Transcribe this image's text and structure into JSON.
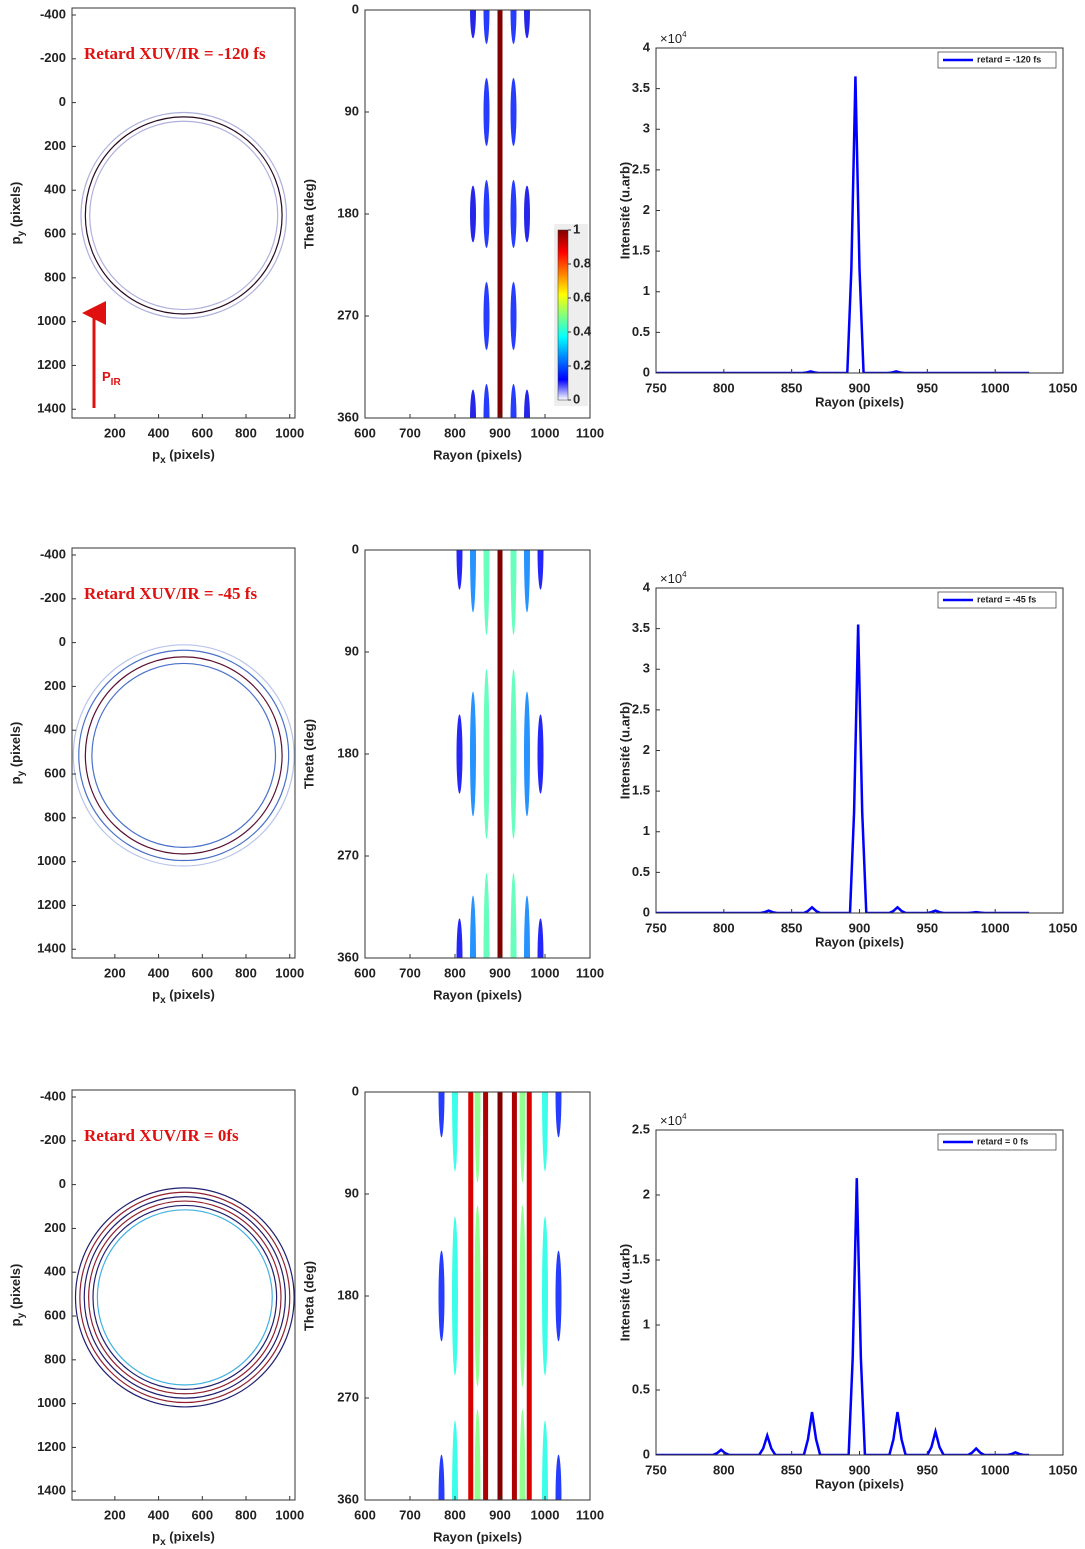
{
  "chart_data": [
    {
      "type": "rings",
      "annotation": "Retard XUV/IR = -120 fs",
      "arrow_label": {
        "main": "P",
        "sub": "IR"
      },
      "xlabel": {
        "main": "p",
        "sub": "x",
        "tail": " (pixels)"
      },
      "ylabel": {
        "main": "p",
        "sub": "y",
        "tail": " (pixels)"
      },
      "xlim": [
        4,
        1024
      ],
      "ylim": [
        -432,
        1440
      ],
      "y_reversed": true,
      "xticks": [
        200,
        400,
        600,
        800,
        1000
      ],
      "yticks": [
        -400,
        -200,
        0,
        200,
        400,
        600,
        800,
        1000,
        1200,
        1400
      ],
      "center": [
        515,
        515
      ],
      "rings": [
        {
          "r": 430,
          "color": "#b0b0dd"
        },
        {
          "r": 470,
          "color": "#b0b0dd"
        },
        {
          "r": 450,
          "color": "#2a0a20"
        }
      ]
    },
    {
      "type": "heatmap",
      "xlabel": "Rayon (pixels)",
      "ylabel": "Theta (deg)",
      "xlim": [
        600,
        1100
      ],
      "ylim": [
        0,
        360
      ],
      "y_reversed": true,
      "xticks": [
        600,
        700,
        800,
        900,
        1000,
        1100
      ],
      "yticks": [
        0,
        90,
        180,
        270,
        360
      ],
      "clim": [
        0,
        1
      ],
      "colorbar": {
        "ticks": [
          0,
          0.2,
          0.4,
          0.6,
          0.8,
          1
        ]
      },
      "stripes": [
        {
          "r": 900,
          "level": 1
        }
      ],
      "lobes": [
        {
          "r": 870,
          "level": 0.15,
          "theta": [
            0,
            90,
            180,
            270,
            360
          ],
          "span": 30
        },
        {
          "r": 930,
          "level": 0.15,
          "theta": [
            0,
            90,
            180,
            270,
            360
          ],
          "span": 30
        },
        {
          "r": 840,
          "level": 0.1,
          "theta": [
            0,
            180,
            360
          ],
          "span": 25
        },
        {
          "r": 960,
          "level": 0.1,
          "theta": [
            0,
            180,
            360
          ],
          "span": 25
        }
      ]
    },
    {
      "type": "line",
      "xlabel": "Rayon (pixels)",
      "ylabel": "Intensité (u.arb)",
      "scale_label": {
        "base": "×10",
        "exp": "4"
      },
      "xlim": [
        750,
        1050
      ],
      "ylim": [
        0,
        4
      ],
      "xticks": [
        750,
        800,
        850,
        900,
        950,
        1000,
        1050
      ],
      "yticks": [
        0,
        0.5,
        1,
        1.5,
        2,
        2.5,
        3,
        3.5,
        4
      ],
      "legend": "upper right",
      "x": [
        750,
        858,
        861,
        864,
        867,
        870,
        891,
        894,
        897,
        900,
        903,
        921,
        924,
        927,
        930,
        933,
        1025
      ],
      "series": [
        {
          "name": "retard = -120 fs",
          "color": "#0000ff",
          "values": [
            0,
            0,
            0.007,
            0.02,
            0.007,
            0,
            0,
            1.28,
            3.65,
            1.28,
            0,
            0,
            0.007,
            0.02,
            0.007,
            0,
            0
          ]
        }
      ]
    },
    {
      "type": "rings",
      "annotation": "Retard XUV/IR = -45 fs",
      "xlabel": {
        "main": "p",
        "sub": "x",
        "tail": " (pixels)"
      },
      "ylabel": {
        "main": "p",
        "sub": "y",
        "tail": " (pixels)"
      },
      "xlim": [
        4,
        1024
      ],
      "ylim": [
        -432,
        1440
      ],
      "y_reversed": true,
      "xticks": [
        200,
        400,
        600,
        800,
        1000
      ],
      "yticks": [
        -400,
        -200,
        0,
        200,
        400,
        600,
        800,
        1000,
        1200,
        1400
      ],
      "center": [
        515,
        515
      ],
      "rings": [
        {
          "r": 505,
          "color": "#b8c4ea"
        },
        {
          "r": 420,
          "color": "#4a70c8"
        },
        {
          "r": 480,
          "color": "#4a70c8"
        },
        {
          "r": 450,
          "color": "#5a1030"
        }
      ]
    },
    {
      "type": "heatmap",
      "xlabel": "Rayon (pixels)",
      "ylabel": "Theta (deg)",
      "xlim": [
        600,
        1100
      ],
      "ylim": [
        0,
        360
      ],
      "y_reversed": true,
      "xticks": [
        600,
        700,
        800,
        900,
        1000,
        1100
      ],
      "yticks": [
        0,
        90,
        180,
        270,
        360
      ],
      "clim": [
        0,
        1
      ],
      "stripes": [
        {
          "r": 900,
          "level": 1
        }
      ],
      "lobes": [
        {
          "r": 870,
          "level": 0.45,
          "theta": [
            0,
            180,
            360
          ],
          "span": 75
        },
        {
          "r": 930,
          "level": 0.45,
          "theta": [
            0,
            180,
            360
          ],
          "span": 75
        },
        {
          "r": 840,
          "level": 0.25,
          "theta": [
            0,
            180,
            360
          ],
          "span": 55
        },
        {
          "r": 960,
          "level": 0.25,
          "theta": [
            0,
            180,
            360
          ],
          "span": 55
        },
        {
          "r": 810,
          "level": 0.12,
          "theta": [
            0,
            180,
            360
          ],
          "span": 35
        },
        {
          "r": 990,
          "level": 0.12,
          "theta": [
            0,
            180,
            360
          ],
          "span": 35
        }
      ]
    },
    {
      "type": "line",
      "xlabel": "Rayon (pixels)",
      "ylabel": "Intensité (u.arb)",
      "scale_label": {
        "base": "×10",
        "exp": "4"
      },
      "xlim": [
        750,
        1050
      ],
      "ylim": [
        0,
        4
      ],
      "xticks": [
        750,
        800,
        850,
        900,
        950,
        1000,
        1050
      ],
      "yticks": [
        0,
        0.5,
        1,
        1.5,
        2,
        2.5,
        3,
        3.5,
        4
      ],
      "legend": "upper right",
      "x": [
        750,
        827,
        830,
        833,
        836,
        839,
        859,
        862,
        865,
        868,
        871,
        893,
        896,
        899,
        902,
        905,
        922,
        925,
        928,
        931,
        934,
        950,
        953,
        956,
        959,
        962,
        980,
        983,
        986,
        989,
        992,
        1025
      ],
      "series": [
        {
          "name": "retard = -45 fs",
          "color": "#0000ff",
          "values": [
            0,
            0,
            0.01,
            0.03,
            0.01,
            0,
            0,
            0.025,
            0.07,
            0.025,
            0,
            0,
            1.24,
            3.55,
            1.24,
            0,
            0,
            0.025,
            0.07,
            0.025,
            0,
            0,
            0.01,
            0.03,
            0.01,
            0,
            0,
            0.004,
            0.01,
            0.004,
            0,
            0
          ]
        }
      ]
    },
    {
      "type": "rings",
      "annotation": "Retard XUV/IR = 0fs",
      "xlabel": {
        "main": "p",
        "sub": "x",
        "tail": " (pixels)"
      },
      "ylabel": {
        "main": "p",
        "sub": "y",
        "tail": " (pixels)"
      },
      "xlim": [
        4,
        1024
      ],
      "ylim": [
        -432,
        1440
      ],
      "y_reversed": true,
      "xticks": [
        200,
        400,
        600,
        800,
        1000
      ],
      "yticks": [
        -400,
        -200,
        0,
        200,
        400,
        600,
        800,
        1000,
        1200,
        1400
      ],
      "center": [
        520,
        515
      ],
      "rings": [
        {
          "r": 400,
          "color": "#40b0e0"
        },
        {
          "r": 420,
          "color": "#202070"
        },
        {
          "r": 440,
          "color": "#902030"
        },
        {
          "r": 460,
          "color": "#202070"
        },
        {
          "r": 480,
          "color": "#902030"
        },
        {
          "r": 500,
          "color": "#202070"
        }
      ]
    },
    {
      "type": "heatmap",
      "xlabel": "Rayon (pixels)",
      "ylabel": "Theta (deg)",
      "xlim": [
        600,
        1100
      ],
      "ylim": [
        0,
        360
      ],
      "y_reversed": true,
      "xticks": [
        600,
        700,
        800,
        900,
        1000,
        1100
      ],
      "yticks": [
        0,
        90,
        180,
        270,
        360
      ],
      "clim": [
        0,
        1
      ],
      "stripes": [
        {
          "r": 835,
          "level": 0.9
        },
        {
          "r": 868,
          "level": 0.95
        },
        {
          "r": 900,
          "level": 1
        },
        {
          "r": 932,
          "level": 0.95
        },
        {
          "r": 965,
          "level": 0.9
        }
      ],
      "lobes": [
        {
          "r": 850,
          "level": 0.5,
          "theta": [
            0,
            180,
            360
          ],
          "span": 80
        },
        {
          "r": 950,
          "level": 0.5,
          "theta": [
            0,
            180,
            360
          ],
          "span": 80
        },
        {
          "r": 800,
          "level": 0.4,
          "theta": [
            0,
            180,
            360
          ],
          "span": 70
        },
        {
          "r": 1000,
          "level": 0.4,
          "theta": [
            0,
            180,
            360
          ],
          "span": 70
        },
        {
          "r": 770,
          "level": 0.15,
          "theta": [
            0,
            180,
            360
          ],
          "span": 40
        },
        {
          "r": 1030,
          "level": 0.15,
          "theta": [
            0,
            180,
            360
          ],
          "span": 40
        }
      ]
    },
    {
      "type": "line",
      "xlabel": "Rayon (pixels)",
      "ylabel": "Intensité (u.arb)",
      "scale_label": {
        "base": "×10",
        "exp": "4"
      },
      "xlim": [
        750,
        1050
      ],
      "ylim": [
        0,
        2.5
      ],
      "xticks": [
        750,
        800,
        850,
        900,
        950,
        1000,
        1050
      ],
      "yticks": [
        0,
        0.5,
        1,
        1.5,
        2,
        2.5
      ],
      "legend": "upper right",
      "x": [
        750,
        792,
        795,
        798,
        801,
        804,
        826,
        829,
        832,
        835,
        838,
        859,
        862,
        865,
        868,
        871,
        892,
        895,
        898,
        901,
        904,
        922,
        925,
        928,
        931,
        934,
        950,
        953,
        956,
        959,
        962,
        980,
        983,
        986,
        989,
        992,
        1009,
        1012,
        1015,
        1018,
        1021,
        1025
      ],
      "series": [
        {
          "name": "retard = 0 fs",
          "color": "#0000ff",
          "values": [
            0,
            0,
            0.014,
            0.04,
            0.014,
            0,
            0,
            0.05,
            0.15,
            0.05,
            0,
            0,
            0.12,
            0.33,
            0.12,
            0,
            0,
            0.75,
            2.13,
            0.75,
            0,
            0,
            0.12,
            0.33,
            0.12,
            0,
            0,
            0.06,
            0.18,
            0.06,
            0,
            0,
            0.018,
            0.05,
            0.018,
            0,
            0,
            0.007,
            0.02,
            0.007,
            0,
            0
          ]
        }
      ]
    }
  ]
}
